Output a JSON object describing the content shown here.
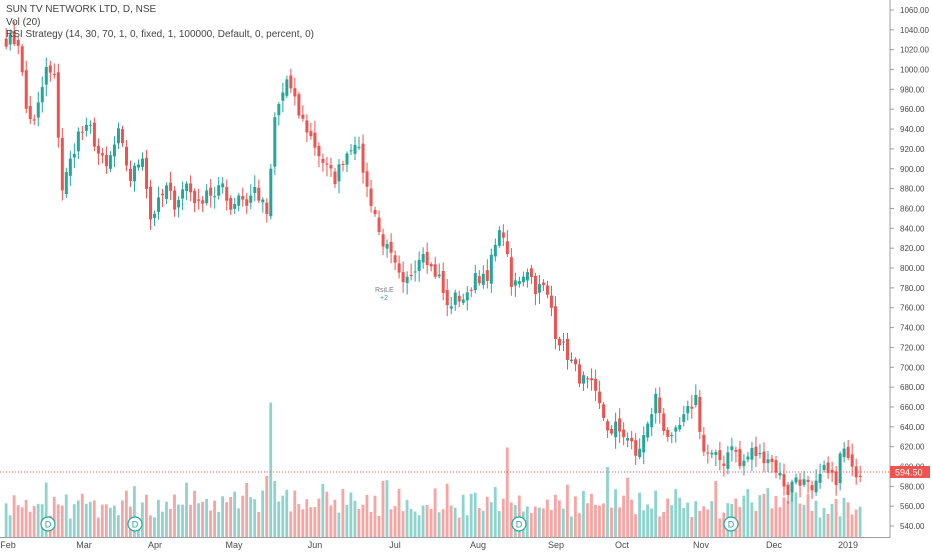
{
  "legend": {
    "title": "SUN TV NETWORK LTD, D, NSE",
    "vol": "Vol (20)",
    "strategy": "RSI Strategy (14, 30, 70, 1, 0, fixed, 1, 100000, Default, 0, percent, 0)"
  },
  "price_tag": "594.50",
  "dividend_marker": "D",
  "strategy_marker": {
    "label": "RsiLE",
    "qty": "+2"
  },
  "colors": {
    "up": "#26a69a",
    "down": "#ef5350",
    "up_vol": "#8fd3cc",
    "down_vol": "#f5a5a3",
    "axis_text": "#4a4a4a",
    "axis_line": "#9e9e9e",
    "price_line": "#ef5350",
    "marker": "#26a69a"
  },
  "chart_data": {
    "type": "candlestick",
    "x_labels": [
      "Feb",
      "Mar",
      "Apr",
      "May",
      "Jun",
      "Jul",
      "Aug",
      "Sep",
      "Oct",
      "Nov",
      "Dec",
      "2019"
    ],
    "y_ticks": [
      "1060.00",
      "1040.00",
      "1020.00",
      "1000.00",
      "980.00",
      "960.00",
      "940.00",
      "920.00",
      "900.00",
      "880.00",
      "860.00",
      "840.00",
      "820.00",
      "800.00",
      "780.00",
      "760.00",
      "740.00",
      "720.00",
      "700.00",
      "680.00",
      "660.00",
      "640.00",
      "620.00",
      "600.00",
      "580.00",
      "560.00",
      "540.00"
    ],
    "ylim": [
      532,
      1066
    ],
    "last_price": 594.5,
    "close_path": [
      [
        0,
        1030
      ],
      [
        3,
        1028
      ],
      [
        5,
        960
      ],
      [
        7,
        945
      ],
      [
        10,
        1000
      ],
      [
        12,
        990
      ],
      [
        14,
        880
      ],
      [
        18,
        935
      ],
      [
        21,
        940
      ],
      [
        23,
        915
      ],
      [
        25,
        900
      ],
      [
        28,
        935
      ],
      [
        31,
        890
      ],
      [
        34,
        915
      ],
      [
        36,
        850
      ],
      [
        38,
        865
      ],
      [
        40,
        880
      ],
      [
        42,
        865
      ],
      [
        45,
        885
      ],
      [
        48,
        862
      ],
      [
        50,
        880
      ],
      [
        52,
        870
      ],
      [
        54,
        885
      ],
      [
        56,
        860
      ],
      [
        58,
        875
      ],
      [
        60,
        865
      ],
      [
        62,
        880
      ],
      [
        65,
        855
      ],
      [
        66,
        895
      ],
      [
        67,
        950
      ],
      [
        70,
        990
      ],
      [
        73,
        955
      ],
      [
        75,
        940
      ],
      [
        78,
        915
      ],
      [
        80,
        900
      ],
      [
        82,
        890
      ],
      [
        84,
        910
      ],
      [
        87,
        930
      ],
      [
        89,
        900
      ],
      [
        90,
        880
      ],
      [
        92,
        855
      ],
      [
        93,
        835
      ],
      [
        96,
        810
      ],
      [
        99,
        780
      ],
      [
        101,
        795
      ],
      [
        104,
        820
      ],
      [
        106,
        800
      ],
      [
        108,
        790
      ],
      [
        110,
        760
      ],
      [
        112,
        770
      ],
      [
        115,
        770
      ],
      [
        117,
        795
      ],
      [
        120,
        785
      ],
      [
        122,
        830
      ],
      [
        124,
        835
      ],
      [
        126,
        780
      ],
      [
        128,
        790
      ],
      [
        130,
        800
      ],
      [
        132,
        780
      ],
      [
        134,
        780
      ],
      [
        136,
        760
      ],
      [
        137,
        735
      ],
      [
        139,
        720
      ],
      [
        141,
        705
      ],
      [
        143,
        690
      ],
      [
        146,
        680
      ],
      [
        148,
        660
      ],
      [
        149,
        650
      ],
      [
        151,
        630
      ],
      [
        152,
        640
      ],
      [
        155,
        630
      ],
      [
        157,
        610
      ],
      [
        160,
        640
      ],
      [
        161,
        655
      ],
      [
        162,
        670
      ],
      [
        164,
        640
      ],
      [
        166,
        625
      ],
      [
        168,
        640
      ],
      [
        170,
        655
      ],
      [
        172,
        670
      ],
      [
        173,
        640
      ],
      [
        174,
        615
      ],
      [
        176,
        610
      ],
      [
        179,
        605
      ],
      [
        181,
        625
      ],
      [
        183,
        600
      ],
      [
        186,
        615
      ],
      [
        188,
        610
      ],
      [
        190,
        610
      ],
      [
        192,
        598
      ],
      [
        195,
        575
      ],
      [
        197,
        590
      ],
      [
        200,
        580
      ],
      [
        201,
        570
      ],
      [
        203,
        590
      ],
      [
        205,
        600
      ],
      [
        207,
        580
      ],
      [
        208,
        610
      ],
      [
        210,
        615
      ],
      [
        212,
        595
      ]
    ],
    "vol_levels": [
      0.32,
      0.22,
      0.28,
      0.18,
      0.26,
      0.34,
      0.22,
      0.2,
      0.28,
      0.24,
      0.3,
      0.16,
      0.26,
      0.2,
      0.24,
      0.32,
      0.18,
      0.28,
      0.22,
      0.24,
      0.3,
      0.2,
      0.26,
      0.18,
      0.28,
      0.22,
      0.26,
      0.3,
      0.18,
      0.24
    ],
    "vol_spikes": [
      [
        66,
        0.96,
        "up"
      ],
      [
        67,
        0.4,
        "up"
      ],
      [
        79,
        0.38,
        "up"
      ],
      [
        94,
        0.4,
        "down"
      ],
      [
        125,
        0.64,
        "down"
      ],
      [
        150,
        0.5,
        "up"
      ],
      [
        177,
        0.4,
        "down"
      ],
      [
        196,
        0.36,
        "up"
      ],
      [
        209,
        0.28,
        "up"
      ]
    ]
  }
}
